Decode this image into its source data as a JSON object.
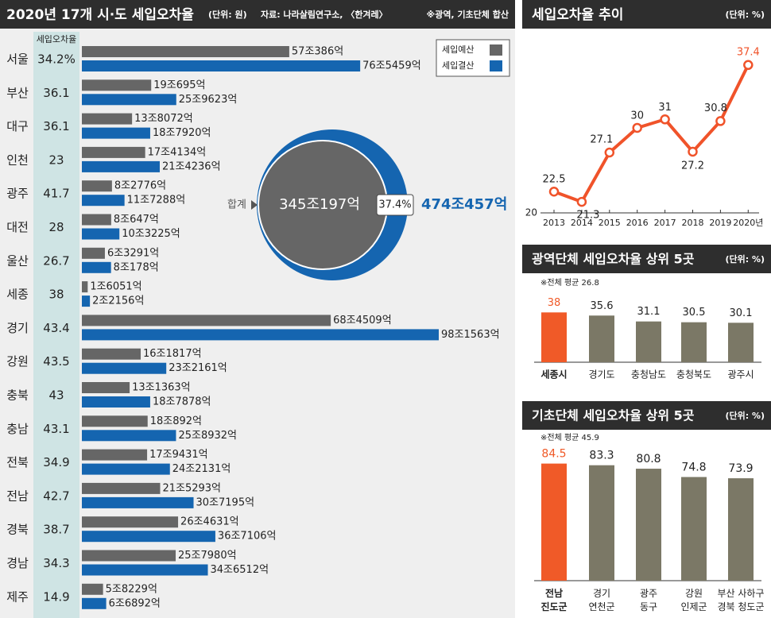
{
  "chart_data": [
    {
      "type": "hbar",
      "title": "2020년 17개 시·도 세입오차율",
      "unit": "(단위: 원)",
      "source": "자료: 나라살림연구소, 〈한겨레〉",
      "note": "※광역, 기초단체 합산",
      "rate_header": "세입오차율",
      "categories": [
        "서울",
        "부산",
        "대구",
        "인천",
        "광주",
        "대전",
        "울산",
        "세종",
        "경기",
        "강원",
        "충북",
        "충남",
        "전북",
        "전남",
        "경북",
        "경남",
        "제주"
      ],
      "rates": [
        "34.2%",
        "36.1",
        "36.1",
        "23",
        "41.7",
        "28",
        "26.7",
        "38",
        "43.4",
        "43.5",
        "43",
        "43.1",
        "34.9",
        "42.7",
        "38.7",
        "34.3",
        "14.9"
      ],
      "series": [
        {
          "name": "세입예산",
          "color": "#666666",
          "values": [
            570386,
            190695,
            138072,
            174134,
            82776,
            80647,
            63291,
            16051,
            684509,
            161817,
            131363,
            180892,
            179431,
            215293,
            264631,
            257980,
            58229
          ],
          "value_labels": [
            "57조386억",
            "19조695억",
            "13조8072억",
            "17조4134억",
            "8조2776억",
            "8조647억",
            "6조3291억",
            "1조6051억",
            "68조4509억",
            "16조1817억",
            "13조1363억",
            "18조892억",
            "17조9431억",
            "21조5293억",
            "26조4631억",
            "25조7980억",
            "5조8229억"
          ]
        },
        {
          "name": "세입결산",
          "color": "#1565b0",
          "values": [
            765459,
            259623,
            187920,
            214236,
            117288,
            103225,
            80178,
            22156,
            981563,
            232161,
            187878,
            258932,
            242131,
            307195,
            367106,
            346512,
            66892
          ],
          "value_labels": [
            "76조5459억",
            "25조9623억",
            "18조7920억",
            "21조4236억",
            "11조7288억",
            "10조3225억",
            "8조178억",
            "2조2156억",
            "98조1563억",
            "23조2161억",
            "18조7878억",
            "25조8932억",
            "24조2131억",
            "30조7195억",
            "36조7106억",
            "34조6512억",
            "6조6892억"
          ]
        }
      ],
      "total": {
        "label": "합계",
        "values": [
          3450197,
          4740457
        ],
        "value_labels": [
          "345조197억",
          "474조457억"
        ],
        "rate": 37.4,
        "rate_label": "37.4%"
      }
    },
    {
      "type": "line",
      "title": "세입오차율 추이",
      "unit": "(단위: %)",
      "categories": [
        "2013",
        "2014",
        "2015",
        "2016",
        "2017",
        "2018",
        "2019",
        "2020년"
      ],
      "values": [
        22.5,
        21.3,
        27.1,
        30,
        31,
        27.2,
        30.8,
        37.4
      ],
      "color": "#f0532a",
      "ylim": [
        20,
        38.5
      ],
      "yticks": [
        20
      ]
    },
    {
      "type": "bar",
      "title": "광역단체 세입오차율 상위 5곳",
      "unit": "(단위: %)",
      "note": "※전체 평균 26.8",
      "categories": [
        "세종시",
        "경기도",
        "충청남도",
        "충청북도",
        "광주시"
      ],
      "values": [
        38,
        35.6,
        31.1,
        30.5,
        30.1
      ],
      "colors": [
        "#f05a28",
        "#7b7866",
        "#7b7866",
        "#7b7866",
        "#7b7866"
      ],
      "ylim": [
        0,
        40
      ]
    },
    {
      "type": "bar",
      "title": "기초단체 세입오차율 상위 5곳",
      "unit": "(단위: %)",
      "note": "※전체 평균 45.9",
      "categories": [
        "전남\n진도군",
        "경기\n연천군",
        "광주\n동구",
        "강원\n인제군",
        "부산 사하구\n경북 청도군"
      ],
      "values": [
        84.5,
        83.3,
        80.8,
        74.8,
        73.9
      ],
      "colors": [
        "#f05a28",
        "#7b7866",
        "#7b7866",
        "#7b7866",
        "#7b7866"
      ],
      "ylim": [
        0,
        90
      ]
    }
  ]
}
